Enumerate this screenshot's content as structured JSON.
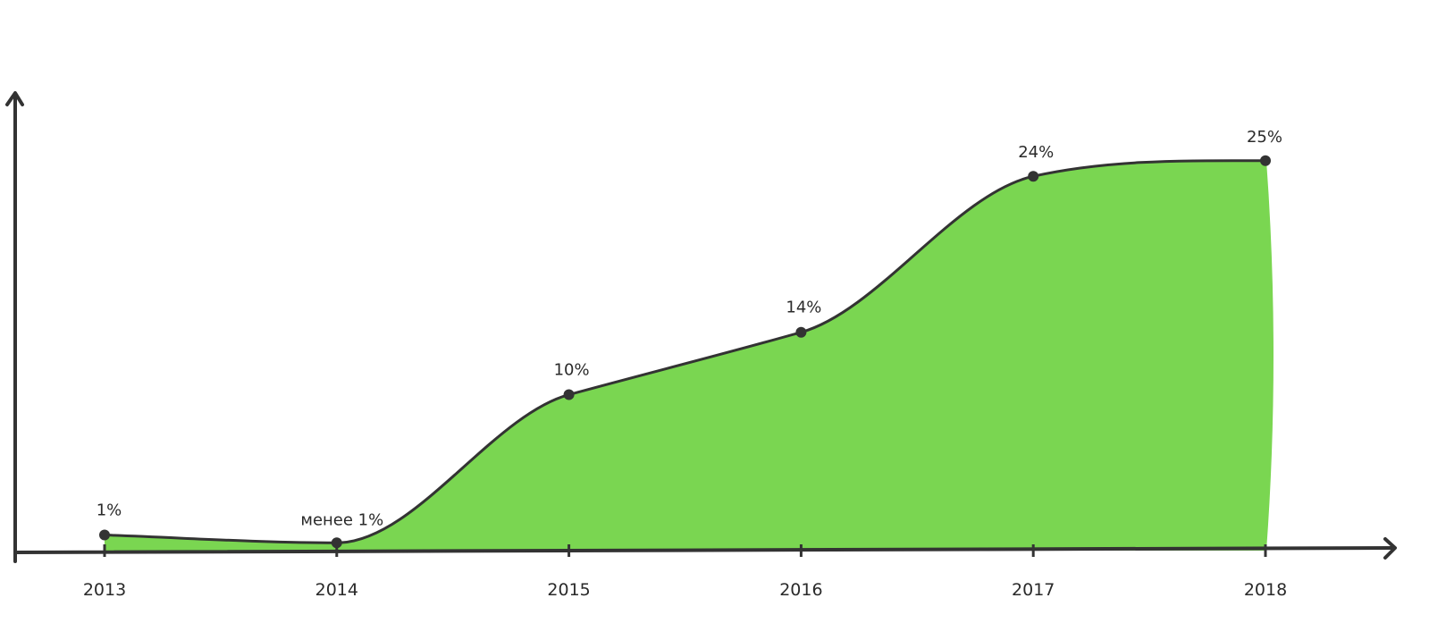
{
  "chart_data": {
    "type": "area",
    "categories": [
      "2013",
      "2014",
      "2015",
      "2016",
      "2017",
      "2018"
    ],
    "values": [
      1,
      0.5,
      10,
      14,
      24,
      25
    ],
    "data_labels": [
      "1%",
      "менее 1%",
      "10%",
      "14%",
      "24%",
      "25%"
    ],
    "title": "",
    "xlabel": "",
    "ylabel": "",
    "ylim": [
      0,
      30
    ],
    "grid": false,
    "legend": "none",
    "colors": {
      "fill": "#7ad651",
      "line": "#333333",
      "axis": "#333333"
    }
  }
}
